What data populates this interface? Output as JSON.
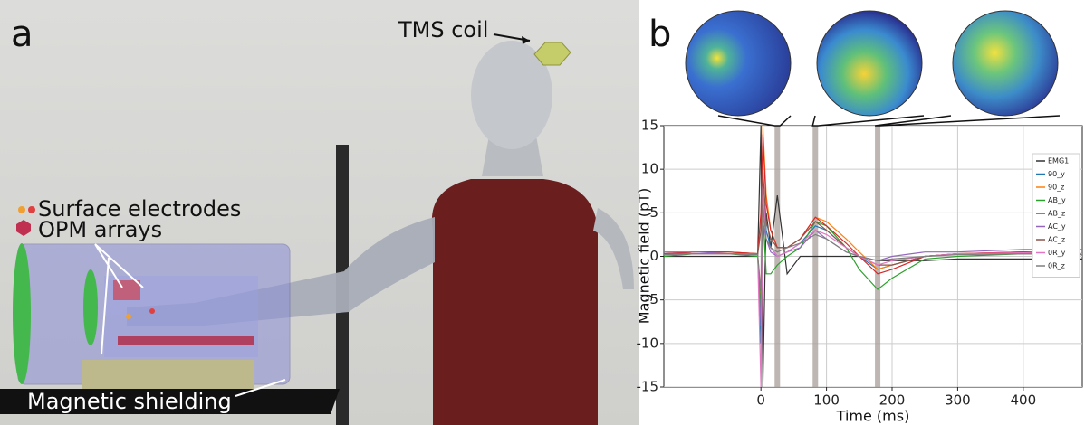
{
  "panel_a": {
    "label": "a",
    "annotations": [
      "TMS coil",
      "Surface electrodes",
      "OPM arrays",
      "Magnetic shielding"
    ]
  },
  "chart_data": {
    "type": "line",
    "panel_label": "b",
    "x_label": "Time (ms)",
    "y_label": "Magnetic field (pT)",
    "x": [
      -148,
      -100,
      -50,
      -5,
      0,
      3,
      8,
      15,
      25,
      40,
      60,
      83,
      100,
      130,
      150,
      178,
      200,
      250,
      300,
      400,
      490
    ],
    "series": [
      {
        "name": "EMG1",
        "color": "#333333",
        "values": [
          0,
          0,
          0,
          0,
          15,
          -15,
          5,
          1,
          7,
          -2,
          0,
          0,
          0,
          0,
          0,
          -0.5,
          -0.5,
          -0.5,
          -0.3,
          -0.3,
          -0.3
        ]
      },
      {
        "name": "90_y",
        "color": "#1f77b4",
        "values": [
          0.3,
          0.5,
          0.5,
          0.3,
          -10,
          8,
          3,
          1,
          0,
          0.5,
          1.5,
          3.5,
          3,
          1,
          0,
          -1.5,
          -1,
          0,
          0.3,
          0.5,
          0.3
        ]
      },
      {
        "name": "90_z",
        "color": "#ff7f0e",
        "values": [
          0.3,
          0.5,
          0.5,
          0.3,
          -5,
          15,
          7,
          3,
          1,
          1,
          2,
          4.5,
          4,
          2,
          0.5,
          -1.5,
          -1,
          0,
          0.3,
          0.5,
          0.3
        ]
      },
      {
        "name": "AB_y",
        "color": "#2ca02c",
        "values": [
          0,
          0.3,
          0.3,
          0,
          -6,
          5,
          -2,
          -2,
          -1,
          0,
          1,
          4,
          3.5,
          1,
          -1.5,
          -3.8,
          -2.5,
          -0.3,
          0,
          0.3,
          0.3
        ]
      },
      {
        "name": "AB_z",
        "color": "#d62728",
        "values": [
          0.3,
          0.5,
          0.5,
          0.3,
          5,
          14,
          6,
          3,
          1,
          1,
          2,
          4.5,
          3.5,
          1.5,
          0,
          -2,
          -1.5,
          0,
          0.3,
          0.5,
          0.3
        ]
      },
      {
        "name": "AC_y",
        "color": "#9467bd",
        "values": [
          0.5,
          0.5,
          0.3,
          0.3,
          -8,
          4,
          2,
          0.5,
          0,
          0.5,
          1,
          3,
          2,
          0.5,
          0,
          -0.5,
          0,
          0.5,
          0.5,
          0.8,
          0.8
        ]
      },
      {
        "name": "AC_z",
        "color": "#8c564b",
        "values": [
          0.3,
          0.3,
          0.3,
          0.2,
          3,
          10,
          4,
          2,
          1,
          1,
          2,
          4,
          3,
          1,
          0,
          -1,
          -1,
          0,
          0.3,
          0.3,
          0.3
        ]
      },
      {
        "name": "0R_y",
        "color": "#e377c2",
        "values": [
          0.2,
          0.3,
          0.3,
          0.2,
          -15,
          8,
          2,
          1,
          0,
          0.5,
          1.5,
          3,
          2.5,
          1,
          0,
          -1,
          -0.5,
          0,
          0.3,
          0.4,
          0.3
        ]
      },
      {
        "name": "0R_z",
        "color": "#7f7f7f",
        "values": [
          0.2,
          0.3,
          0.3,
          0.2,
          -4,
          6,
          2,
          1,
          0.5,
          1,
          1.5,
          2.5,
          2,
          0.5,
          0,
          -0.5,
          -0.3,
          0,
          0.2,
          0.3,
          0.2
        ]
      }
    ],
    "highlights": [
      25,
      83,
      178
    ],
    "xlim": [
      -148,
      490
    ],
    "ylim": [
      -15,
      15
    ],
    "xticks": [
      0,
      100,
      200,
      300,
      400
    ],
    "yticks": [
      -15,
      -10,
      -5,
      0,
      5,
      10,
      15
    ],
    "grid": true,
    "legend": "upper right"
  }
}
